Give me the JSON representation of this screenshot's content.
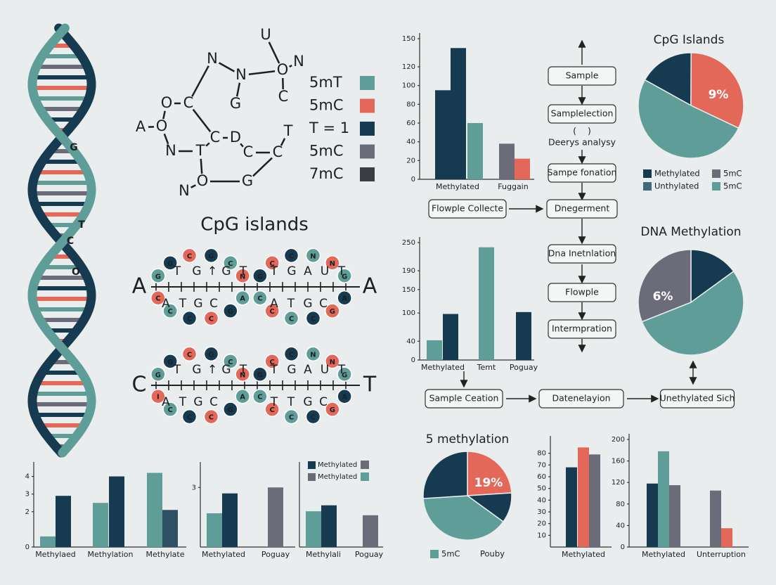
{
  "helix": {
    "labels": [
      "G",
      "T",
      "C",
      "O"
    ]
  },
  "molecule": {
    "atoms": [
      "U",
      "N",
      "N",
      "O",
      "N",
      "G",
      "C",
      "O",
      "C",
      "A",
      "O",
      "N",
      "T",
      "C",
      "D",
      "T",
      "C",
      "C",
      "G",
      "N",
      "O"
    ]
  },
  "legend": [
    {
      "label": "5mT",
      "color": "#5f9e98"
    },
    {
      "label": "5mC",
      "color": "#e4685a"
    },
    {
      "label": "T = 1",
      "color": "#163a50"
    },
    {
      "label": "5mC",
      "color": "#6b6b7a"
    },
    {
      "label": "7mC",
      "color": "#3a3d42"
    }
  ],
  "cpg": {
    "title": "CpG islands",
    "rows": [
      {
        "left": "A",
        "right": "A",
        "top": [
          "T",
          "G",
          "↑",
          "G",
          "T",
          "T",
          "G",
          "A",
          "U",
          "T"
        ],
        "bottom": [
          "A",
          "T",
          "G",
          "C",
          "A",
          "T",
          "G",
          "C"
        ],
        "beads": [
          [
            "G",
            "G",
            "C",
            "G",
            "C",
            "N",
            "A",
            "G",
            "C",
            "C",
            "C",
            "C"
          ],
          [
            "G",
            "C",
            "C",
            "N",
            "N",
            "G",
            "A",
            "G",
            "C",
            "C",
            "C",
            "C"
          ]
        ]
      },
      {
        "left": "C",
        "right": "T",
        "top": [
          "T",
          "G",
          "↑",
          "G",
          "T",
          "T",
          "G",
          "A",
          "U",
          "T"
        ],
        "bottom": [
          "A",
          "T",
          "G",
          "C",
          "T",
          "T",
          "G",
          "C"
        ],
        "beads": [
          [
            "G",
            "G",
            "C",
            "G",
            "C",
            "N",
            "A",
            "G",
            "C",
            "C",
            "C",
            "I"
          ],
          [
            "G",
            "C",
            "C",
            "N",
            "N",
            "G",
            "A",
            "G",
            "C",
            "C",
            "C",
            "C"
          ]
        ]
      }
    ]
  },
  "flowchart": {
    "nodes": [
      "Sample",
      "Samplelection",
      "(    )",
      "Deerys analysy",
      "Sampe fonation",
      "Flowple Collecte",
      "Dnegerment",
      "Dna Inetnlation",
      "Flowple",
      "Intermpration",
      "Sample Ceation",
      "Datenelayion",
      "Unethylated Sich"
    ]
  },
  "chart_data": [
    {
      "type": "bar",
      "categories": [
        null,
        "Methylated",
        null,
        "Fuggain",
        null
      ],
      "values": [
        95,
        140,
        60,
        38,
        22
      ],
      "colors": [
        "#163a50",
        "#163a50",
        "#5f9e98",
        "#6b6b7a",
        "#e4685a"
      ],
      "ylim": [
        0,
        150
      ],
      "yticks": [
        0,
        20,
        40,
        60,
        80,
        100,
        120,
        150
      ]
    },
    {
      "type": "bar",
      "categories": [
        "Methylated",
        null,
        "Temt",
        "Poguay"
      ],
      "values": [
        42,
        98,
        240,
        102
      ],
      "colors": [
        "#5f9e98",
        "#163a50",
        "#5f9e98",
        "#163a50"
      ],
      "ylim": [
        0,
        250
      ],
      "yticks": [
        0,
        40,
        100,
        150,
        190,
        250
      ]
    },
    {
      "type": "bar",
      "categories": [
        null,
        "Methylaed",
        null,
        "Methylation",
        null,
        "Methylate"
      ],
      "values": [
        0.6,
        2.9,
        2.5,
        4.0,
        4.2,
        2.1
      ],
      "colors": [
        "#5f9e98",
        "#163a50",
        "#5f9e98",
        "#163a50",
        "#5f9e98",
        "#2f5063"
      ],
      "ylim": [
        0,
        4.5
      ],
      "yticks": [
        0,
        2,
        3,
        4
      ]
    },
    {
      "type": "bar",
      "categories": [
        null,
        "Methylated",
        "Poguay"
      ],
      "values": [
        1.7,
        2.7,
        3.0
      ],
      "colors": [
        "#5f9e98",
        "#163a50",
        "#6b6b7a"
      ],
      "ylim": [
        0,
        4
      ],
      "yticks": [
        3
      ]
    },
    {
      "type": "bar",
      "categories": [
        null,
        "Methylali",
        "Poguay"
      ],
      "values": [
        1.8,
        2.1,
        1.6
      ],
      "colors": [
        "#5f9e98",
        "#163a50",
        "#6b6b7a"
      ],
      "ylim": [
        0,
        4
      ],
      "legend": [
        {
          "label": "Methylated",
          "color": "#163a50",
          "color2": "#6b6b7a"
        },
        {
          "label": "Methylated",
          "color": "#6b6b7a",
          "color2": "#5f9e98"
        }
      ]
    },
    {
      "type": "pie",
      "title": "CpG Islands",
      "values": [
        17,
        32,
        51
      ],
      "colors": [
        "#163a50",
        "#e4685a",
        "#5f9e98"
      ],
      "annotation": "9%",
      "legend": [
        {
          "label": "Methylated",
          "color": "#163a50"
        },
        {
          "label": "5mC",
          "color": "#6b6b7a"
        },
        {
          "label": "Unthylated",
          "color": "#3d6b7c"
        },
        {
          "label": "5mC",
          "color": "#5f9e98"
        }
      ]
    },
    {
      "type": "pie",
      "title": "DNA Methylation",
      "values": [
        15,
        54,
        31
      ],
      "colors": [
        "#163a50",
        "#5f9e98",
        "#6b6b7a"
      ],
      "annotation": "6%"
    },
    {
      "type": "pie",
      "title": "5 methylation",
      "values": [
        24,
        11,
        39,
        26
      ],
      "colors": [
        "#e4685a",
        "#163a50",
        "#5f9e98",
        "#163a50"
      ],
      "annotation": "19%",
      "legend": [
        {
          "label": "5mC",
          "color": "#5f9e98"
        },
        {
          "label": "Pouby"
        }
      ]
    },
    {
      "type": "bar",
      "categories": [
        null,
        "Methylated",
        null
      ],
      "values": [
        68,
        85,
        79
      ],
      "colors": [
        "#163a50",
        "#e4685a",
        "#6b6b7a"
      ],
      "ylim": [
        0,
        90
      ],
      "yticks": [
        10,
        20,
        30,
        40,
        50,
        60,
        70,
        80
      ]
    },
    {
      "type": "bar",
      "categories": [
        null,
        "Methylated",
        null,
        null,
        "Unterruption"
      ],
      "values": [
        118,
        178,
        115,
        105,
        35
      ],
      "colors": [
        "#163a50",
        "#5f9e98",
        "#6b6b7a",
        "#6b6b7a",
        "#e4685a"
      ],
      "ylim": [
        0,
        200
      ],
      "yticks": [
        0,
        40,
        80,
        120,
        160,
        200
      ]
    }
  ]
}
